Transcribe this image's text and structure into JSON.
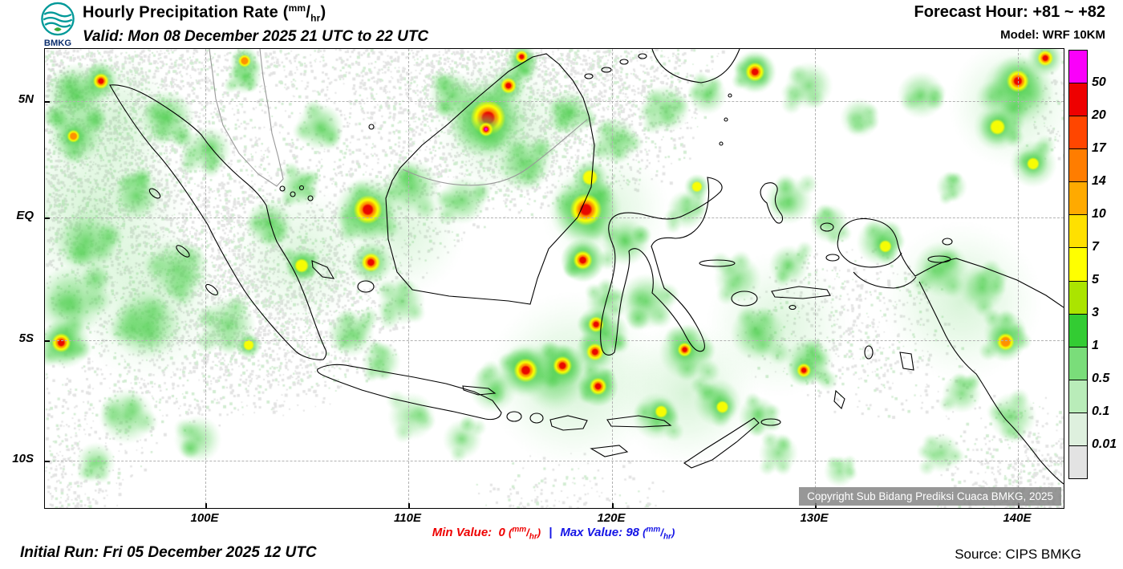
{
  "header": {
    "logo": "BMKG",
    "title_prefix": "Hourly Precipitation Rate (",
    "title_suffix": ")",
    "valid": "Valid: Mon 08 December 2025 21 UTC to 22 UTC",
    "forecast": "Forecast Hour: +81 ~ +82",
    "model": "Model: WRF 10KM"
  },
  "units": {
    "num": "mm",
    "den": "hr"
  },
  "map": {
    "copyright": "Copyright Sub Bidang Prediksi Cuaca BMKG, 2025",
    "x_ticks": [
      {
        "label": "100E",
        "x": 0.1575
      },
      {
        "label": "110E",
        "x": 0.3567
      },
      {
        "label": "120E",
        "x": 0.5567
      },
      {
        "label": "130E",
        "x": 0.7559
      },
      {
        "label": "140E",
        "x": 0.9551
      }
    ],
    "y_ticks": [
      {
        "label": "5N",
        "y": 0.1136
      },
      {
        "label": "EQ",
        "y": 0.3671
      },
      {
        "label": "5S",
        "y": 0.6346
      },
      {
        "label": "10S",
        "y": 0.8969
      }
    ]
  },
  "legend": {
    "cells": [
      "#fa00fa",
      "#ee0000",
      "#ff4600",
      "#ff7d00",
      "#ffaa00",
      "#ffe000",
      "#ffff00",
      "#abe400",
      "#33cc33",
      "#7add7a",
      "#b9ecb9",
      "#def0de",
      "#e3e3e3"
    ],
    "labels": [
      "50",
      "20",
      "17",
      "14",
      "10",
      "7",
      "5",
      "3",
      "1",
      "0.5",
      "0.1",
      "0.01"
    ]
  },
  "footer": {
    "min_label": "Min Value:",
    "min_value": "0",
    "sep": "|",
    "max_label": "Max Value:",
    "max_value": "98",
    "initial_run": "Initial Run: Fri 05 December 2025 12 UTC",
    "source": "Source: CIPS BMKG"
  },
  "colors": {
    "min": "#ee0000",
    "max": "#1414e6",
    "sep": "#1414e6",
    "grid": "#b2b2b2"
  },
  "precip_field": {
    "seed": 1337,
    "washes": [
      [
        0.05,
        0.35,
        120,
        0.22
      ],
      [
        0.1,
        0.55,
        100,
        0.2
      ],
      [
        0.45,
        0.17,
        90,
        0.22
      ],
      [
        0.52,
        0.72,
        110,
        0.22
      ],
      [
        0.63,
        0.75,
        90,
        0.2
      ],
      [
        0.9,
        0.55,
        100,
        0.2
      ],
      [
        0.95,
        0.12,
        80,
        0.22
      ],
      [
        0.35,
        0.4,
        80,
        0.18
      ],
      [
        0.55,
        0.35,
        80,
        0.18
      ],
      [
        0.72,
        0.6,
        90,
        0.18
      ],
      [
        0.25,
        0.45,
        90,
        0.18
      ],
      [
        0.07,
        0.15,
        80,
        0.2
      ]
    ],
    "blobs": [
      [
        0.03,
        0.1,
        40,
        0.8
      ],
      [
        0.03,
        0.19,
        35,
        0.8
      ],
      [
        0.02,
        0.64,
        32,
        0.85
      ],
      [
        0.025,
        0.55,
        45,
        0.7
      ],
      [
        0.04,
        0.42,
        40,
        0.7
      ],
      [
        0.09,
        0.32,
        30,
        0.7
      ],
      [
        0.12,
        0.15,
        35,
        0.75
      ],
      [
        0.16,
        0.22,
        30,
        0.7
      ],
      [
        0.13,
        0.48,
        40,
        0.65
      ],
      [
        0.1,
        0.6,
        45,
        0.7
      ],
      [
        0.18,
        0.6,
        35,
        0.65
      ],
      [
        0.22,
        0.38,
        30,
        0.7
      ],
      [
        0.25,
        0.3,
        25,
        0.7
      ],
      [
        0.252,
        0.472,
        22,
        0.8
      ],
      [
        0.317,
        0.36,
        35,
        0.85
      ],
      [
        0.27,
        0.17,
        30,
        0.7
      ],
      [
        0.196,
        0.06,
        22,
        0.75
      ],
      [
        0.43,
        0.16,
        45,
        0.85
      ],
      [
        0.47,
        0.25,
        35,
        0.7
      ],
      [
        0.4,
        0.1,
        30,
        0.7
      ],
      [
        0.468,
        0.04,
        22,
        0.75
      ],
      [
        0.515,
        0.14,
        30,
        0.7
      ],
      [
        0.36,
        0.3,
        35,
        0.7
      ],
      [
        0.41,
        0.33,
        30,
        0.65
      ],
      [
        0.531,
        0.35,
        40,
        0.85
      ],
      [
        0.528,
        0.46,
        28,
        0.8
      ],
      [
        0.56,
        0.2,
        30,
        0.65
      ],
      [
        0.61,
        0.13,
        30,
        0.65
      ],
      [
        0.65,
        0.1,
        25,
        0.6
      ],
      [
        0.697,
        0.05,
        25,
        0.75
      ],
      [
        0.75,
        0.08,
        30,
        0.6
      ],
      [
        0.8,
        0.15,
        25,
        0.55
      ],
      [
        0.57,
        0.42,
        30,
        0.7
      ],
      [
        0.59,
        0.55,
        35,
        0.7
      ],
      [
        0.55,
        0.62,
        30,
        0.8
      ],
      [
        0.472,
        0.7,
        30,
        0.85
      ],
      [
        0.508,
        0.69,
        28,
        0.8
      ],
      [
        0.543,
        0.735,
        26,
        0.8
      ],
      [
        0.5,
        0.72,
        40,
        0.6
      ],
      [
        0.44,
        0.74,
        30,
        0.6
      ],
      [
        0.36,
        0.8,
        30,
        0.5
      ],
      [
        0.41,
        0.85,
        25,
        0.5
      ],
      [
        0.6,
        0.8,
        30,
        0.7
      ],
      [
        0.66,
        0.77,
        30,
        0.7
      ],
      [
        0.7,
        0.8,
        25,
        0.65
      ],
      [
        0.63,
        0.66,
        35,
        0.75
      ],
      [
        0.7,
        0.62,
        35,
        0.7
      ],
      [
        0.75,
        0.68,
        30,
        0.7
      ],
      [
        0.68,
        0.5,
        30,
        0.6
      ],
      [
        0.73,
        0.47,
        25,
        0.6
      ],
      [
        0.73,
        0.33,
        30,
        0.65
      ],
      [
        0.77,
        0.38,
        25,
        0.6
      ],
      [
        0.82,
        0.42,
        30,
        0.7
      ],
      [
        0.88,
        0.48,
        35,
        0.7
      ],
      [
        0.92,
        0.52,
        30,
        0.7
      ],
      [
        0.943,
        0.62,
        28,
        0.75
      ],
      [
        0.9,
        0.75,
        25,
        0.6
      ],
      [
        0.95,
        0.8,
        30,
        0.6
      ],
      [
        0.88,
        0.88,
        25,
        0.55
      ],
      [
        0.955,
        0.09,
        45,
        0.8
      ],
      [
        0.935,
        0.17,
        30,
        0.7
      ],
      [
        0.97,
        0.25,
        30,
        0.65
      ],
      [
        0.86,
        0.1,
        30,
        0.6
      ],
      [
        0.89,
        0.3,
        20,
        0.55
      ],
      [
        0.3,
        0.62,
        30,
        0.65
      ],
      [
        0.33,
        0.68,
        25,
        0.6
      ],
      [
        0.08,
        0.8,
        35,
        0.6
      ],
      [
        0.15,
        0.85,
        30,
        0.55
      ],
      [
        0.05,
        0.9,
        25,
        0.55
      ],
      [
        0.72,
        0.88,
        25,
        0.55
      ],
      [
        0.78,
        0.92,
        20,
        0.5
      ],
      [
        0.55,
        0.55,
        25,
        0.6
      ],
      [
        0.35,
        0.55,
        30,
        0.6
      ],
      [
        0.63,
        0.35,
        25,
        0.6
      ]
    ],
    "cores": [
      [
        0.055,
        0.07,
        10,
        3
      ],
      [
        0.028,
        0.19,
        8,
        2
      ],
      [
        0.016,
        0.64,
        12,
        3
      ],
      [
        0.252,
        0.472,
        9,
        1
      ],
      [
        0.317,
        0.35,
        18,
        3
      ],
      [
        0.32,
        0.465,
        12,
        3
      ],
      [
        0.196,
        0.026,
        8,
        2
      ],
      [
        0.435,
        0.15,
        22,
        3
      ],
      [
        0.433,
        0.175,
        9,
        4
      ],
      [
        0.455,
        0.08,
        10,
        3
      ],
      [
        0.468,
        0.017,
        8,
        3
      ],
      [
        0.531,
        0.35,
        20,
        3
      ],
      [
        0.528,
        0.46,
        12,
        3
      ],
      [
        0.535,
        0.28,
        10,
        1
      ],
      [
        0.697,
        0.05,
        12,
        3
      ],
      [
        0.541,
        0.6,
        10,
        3
      ],
      [
        0.54,
        0.66,
        11,
        3
      ],
      [
        0.472,
        0.7,
        15,
        3
      ],
      [
        0.508,
        0.69,
        12,
        3
      ],
      [
        0.543,
        0.735,
        11,
        3
      ],
      [
        0.605,
        0.79,
        8,
        1
      ],
      [
        0.665,
        0.78,
        8,
        1
      ],
      [
        0.628,
        0.655,
        9,
        3
      ],
      [
        0.745,
        0.7,
        9,
        3
      ],
      [
        0.825,
        0.43,
        8,
        1
      ],
      [
        0.943,
        0.638,
        11,
        2
      ],
      [
        0.955,
        0.07,
        14,
        3
      ],
      [
        0.982,
        0.02,
        10,
        3
      ],
      [
        0.935,
        0.17,
        10,
        1
      ],
      [
        0.97,
        0.25,
        8,
        1
      ],
      [
        0.64,
        0.3,
        7,
        1
      ],
      [
        0.2,
        0.645,
        7,
        1
      ]
    ]
  }
}
